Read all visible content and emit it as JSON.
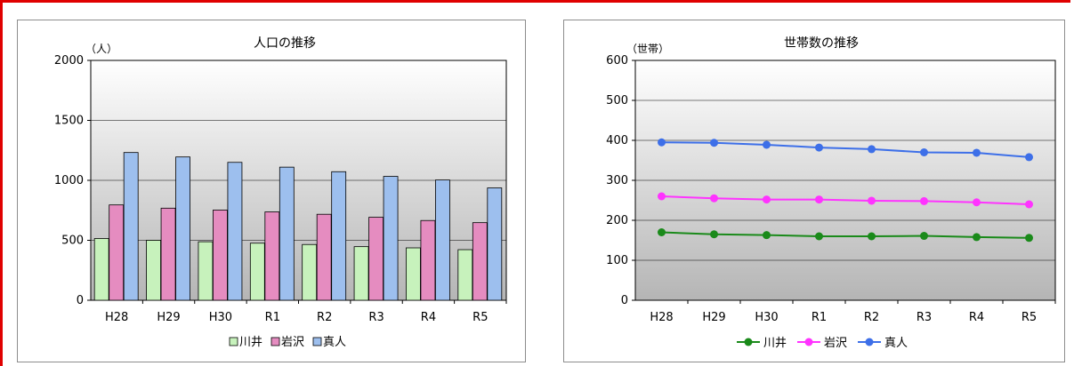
{
  "colors": {
    "frame": "#e00000",
    "kawai": "#c7f2bc",
    "iwasawa": "#e58cc0",
    "mahito": "#9dbfee",
    "line_kawai": "#1a8a1a",
    "line_iwasawa": "#ff33ff",
    "line_mahito": "#3d6fe8"
  },
  "chart_data": [
    {
      "type": "bar",
      "title": "人口の推移",
      "ylabel": "（人）",
      "xlabel": "",
      "categories": [
        "H28",
        "H29",
        "H30",
        "R1",
        "R2",
        "R3",
        "R4",
        "R5"
      ],
      "ylim": [
        0,
        2000
      ],
      "yticks": [
        0,
        500,
        1000,
        1500,
        2000
      ],
      "grid": true,
      "legend": "bottom",
      "series": [
        {
          "name": "川井",
          "values": [
            515,
            500,
            488,
            476,
            465,
            447,
            437,
            422
          ],
          "color": "#c7f2bc"
        },
        {
          "name": "岩沢",
          "values": [
            795,
            768,
            752,
            737,
            717,
            692,
            665,
            647
          ],
          "color": "#e58cc0"
        },
        {
          "name": "真人",
          "values": [
            1232,
            1195,
            1150,
            1110,
            1072,
            1033,
            1003,
            937
          ],
          "color": "#9dbfee"
        }
      ]
    },
    {
      "type": "line",
      "title": "世帯数の推移",
      "ylabel": "（世帯）",
      "xlabel": "",
      "categories": [
        "H28",
        "H29",
        "H30",
        "R1",
        "R2",
        "R3",
        "R4",
        "R5"
      ],
      "ylim": [
        0,
        600
      ],
      "yticks": [
        0,
        100,
        200,
        300,
        400,
        500,
        600
      ],
      "grid": true,
      "legend": "bottom",
      "series": [
        {
          "name": "川井",
          "values": [
            170,
            165,
            163,
            160,
            160,
            161,
            158,
            156
          ],
          "color": "#1a8a1a"
        },
        {
          "name": "岩沢",
          "values": [
            260,
            255,
            252,
            252,
            249,
            248,
            245,
            240
          ],
          "color": "#ff33ff"
        },
        {
          "name": "真人",
          "values": [
            395,
            394,
            389,
            382,
            378,
            370,
            369,
            358
          ],
          "color": "#3d6fe8"
        }
      ]
    }
  ]
}
